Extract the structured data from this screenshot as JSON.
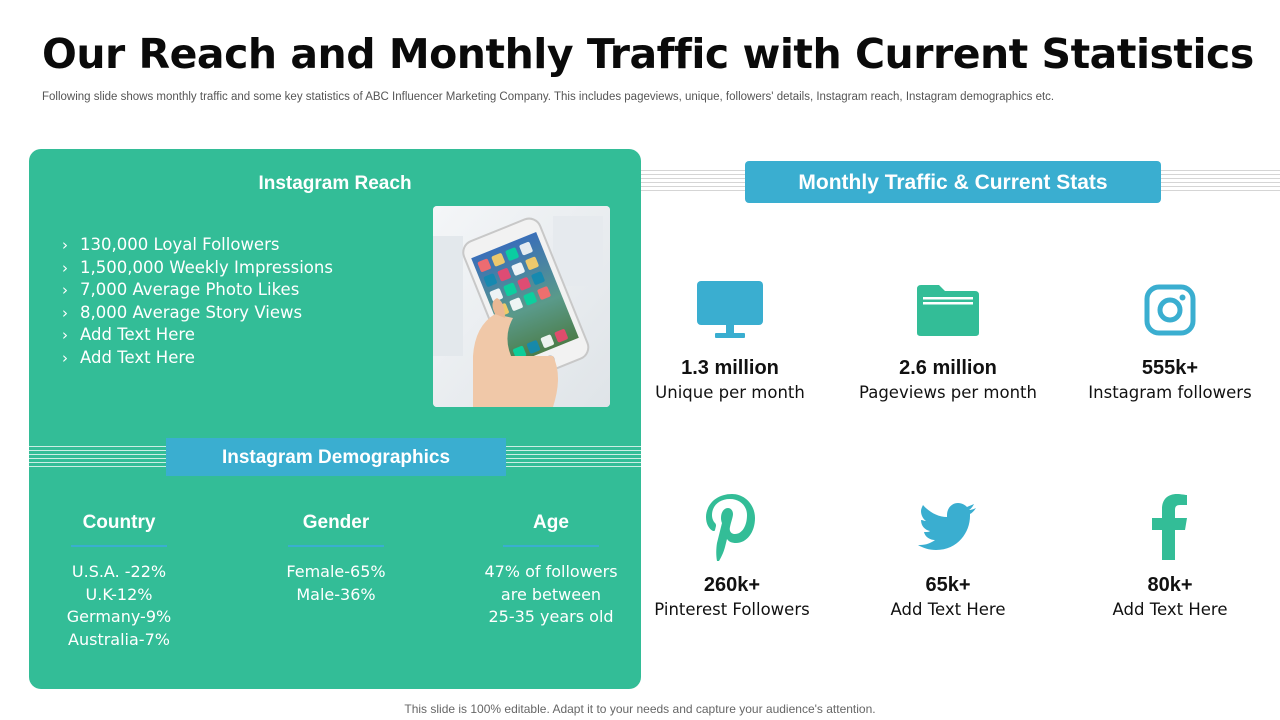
{
  "header": {
    "title": "Our Reach and Monthly Traffic with Current Statistics",
    "subtitle": "Following slide shows monthly traffic and some key statistics of ABC Influencer Marketing Company. This includes pageviews, unique, followers' details, Instagram reach, Instagram demographics  etc."
  },
  "reach": {
    "heading": "Instagram Reach",
    "chevron": "›",
    "items": [
      "130,000 Loyal Followers",
      "1,500,000 Weekly Impressions",
      "7,000 Average Photo Likes",
      "8,000 Average Story Views",
      "Add Text Here",
      "Add Text Here"
    ]
  },
  "demographics": {
    "heading": "Instagram Demographics",
    "country": {
      "heading": "Country",
      "lines": [
        "U.S.A. -22%",
        "U.K-12%",
        "Germany-9%",
        "Australia-7%"
      ]
    },
    "gender": {
      "heading": "Gender",
      "lines": [
        "Female-65%",
        "Male-36%"
      ]
    },
    "age": {
      "heading": "Age",
      "lines": [
        "47% of followers",
        "are between",
        "25-35 years old"
      ]
    }
  },
  "stats": {
    "heading": "Monthly Traffic & Current Stats",
    "items": [
      {
        "icon": "monitor-icon",
        "value": "1.3 million",
        "label": "Unique per month"
      },
      {
        "icon": "folder-icon",
        "value": "2.6 million",
        "label": "Pageviews per month"
      },
      {
        "icon": "instagram-icon",
        "value": "555k+",
        "label": "Instagram followers"
      },
      {
        "icon": "pinterest-icon",
        "value": "260k+",
        "label": "Pinterest Followers"
      },
      {
        "icon": "twitter-icon",
        "value": "65k+",
        "label": "Add Text Here"
      },
      {
        "icon": "facebook-icon",
        "value": "80k+",
        "label": "Add Text Here"
      }
    ]
  },
  "footer": "This slide is 100% editable. Adapt it to your needs and capture your audience's attention.",
  "colors": {
    "green": "#33bd97",
    "blue": "#3aaed0"
  }
}
